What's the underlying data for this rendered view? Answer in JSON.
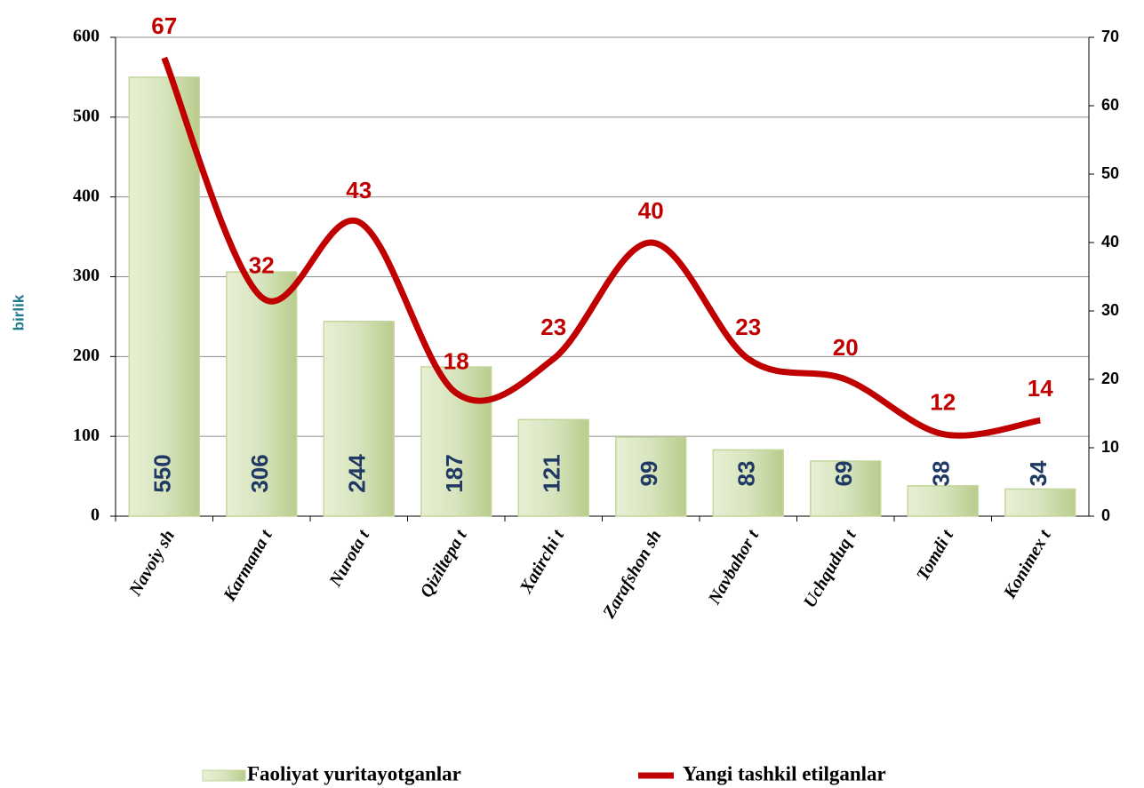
{
  "chart_data": {
    "type": "bar",
    "y_label": "birlik",
    "categories": [
      "Navoiy sh",
      "Karmana t",
      "Nurota t",
      "Qiziltepa t",
      "Xatirchi t",
      "Zarafshon sh",
      "Navbahor t",
      "Uchquduq t",
      "Tomdi t",
      "Konimex t"
    ],
    "series": [
      {
        "name": "Faoliyat yuritayotganlar",
        "type": "bar",
        "color": "#c3d69b",
        "values": [
          550,
          306,
          244,
          187,
          121,
          99,
          83,
          69,
          38,
          34
        ]
      },
      {
        "name": "Yangi tashkil etilganlar",
        "type": "line",
        "axis": "y2",
        "color": "#c00000",
        "values": [
          67,
          32,
          43,
          18,
          23,
          40,
          23,
          20,
          12,
          14
        ]
      }
    ],
    "ylim": [
      0,
      600
    ],
    "yticks": [
      0,
      100,
      200,
      300,
      400,
      500,
      600
    ],
    "y2lim": [
      0,
      70
    ],
    "y2ticks": [
      0,
      10,
      20,
      30,
      40,
      50,
      60,
      70
    ],
    "grid": true,
    "legend": "bottom"
  }
}
